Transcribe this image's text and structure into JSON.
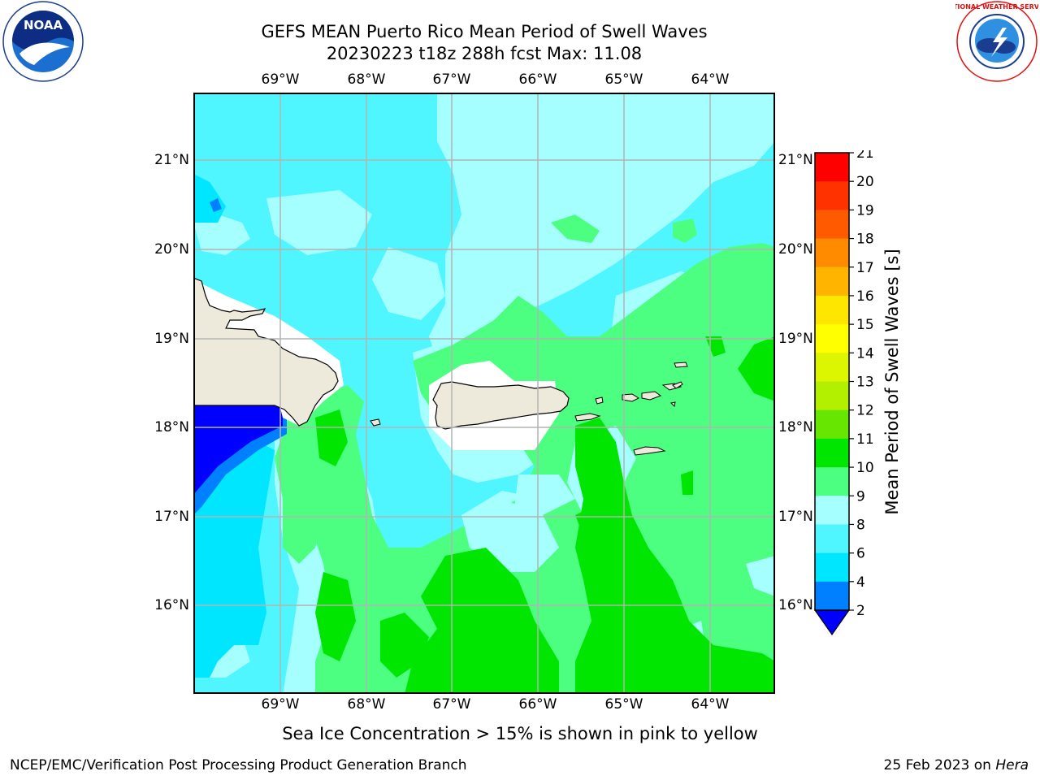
{
  "header": {
    "title_line1": "GEFS MEAN Puerto Rico Mean Period of Swell Waves",
    "title_line2": "20230223 t18z 288h fcst   Max: 11.08"
  },
  "logos": {
    "left": {
      "name": "noaa-logo",
      "text": "NOAA"
    },
    "right": {
      "name": "nws-logo",
      "text": "NATIONAL WEATHER SERVICE"
    }
  },
  "map": {
    "region": "Puerto Rico",
    "lon_labels": [
      "69°W",
      "68°W",
      "67°W",
      "66°W",
      "65°W",
      "64°W"
    ],
    "lat_labels": [
      "21°N",
      "20°N",
      "19°N",
      "18°N",
      "17°N",
      "16°N"
    ],
    "land_color": "#eeeadb",
    "gridline_color": "#b4b4b4"
  },
  "colorbar": {
    "label": "Mean Period of Swell Waves [s]",
    "ticks": [
      "21",
      "20",
      "19",
      "18",
      "17",
      "16",
      "15",
      "14",
      "13",
      "12",
      "11",
      "10",
      "9",
      "8",
      "6",
      "4",
      "2"
    ],
    "levels": [
      {
        "range": "2-4",
        "color": "#0000ff"
      },
      {
        "range": "4-6",
        "color": "#0080ff"
      },
      {
        "range": "6-8",
        "color": "#00e6ff"
      },
      {
        "range": "8-9",
        "color": "#4ff5ff"
      },
      {
        "range": "9-10",
        "color": "#a6ffff"
      },
      {
        "range": "10-11",
        "color": "#4dff80"
      },
      {
        "range": "11-12",
        "color": "#00e600"
      },
      {
        "range": "12-13",
        "color": "#66e600"
      },
      {
        "range": "13-14",
        "color": "#b3f000"
      },
      {
        "range": "14-15",
        "color": "#dcf500"
      },
      {
        "range": "15-16",
        "color": "#ffff00"
      },
      {
        "range": "16-17",
        "color": "#ffe600"
      },
      {
        "range": "17-18",
        "color": "#ffb400"
      },
      {
        "range": "18-19",
        "color": "#ff8c00"
      },
      {
        "range": "19-20",
        "color": "#ff5a00"
      },
      {
        "range": "20-21",
        "color": "#ff3200"
      },
      {
        "range": "21+",
        "color": "#ff0000"
      }
    ]
  },
  "caption": "Sea Ice Concentration > 15% is shown in pink to yellow",
  "footer": {
    "left": "NCEP/EMC/Verification Post Processing Product Generation Branch",
    "right_date": "25 Feb 2023 on ",
    "right_machine": "Hera"
  }
}
